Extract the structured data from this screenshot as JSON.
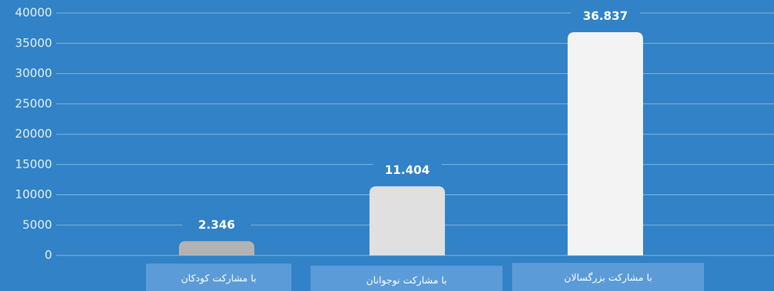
{
  "chart_data": {
    "type": "bar",
    "categories": [
      "با مشارکت کودکان",
      "با مشارکت نوجوانان",
      "با مشارکت بزرگسالان"
    ],
    "values": [
      2346,
      11404,
      36837
    ],
    "value_labels": [
      "2.346",
      "11.404",
      "36.837"
    ],
    "colors": [
      "#b3b3b3",
      "#e0e0e0",
      "#f3f3f3"
    ],
    "ylim": [
      0,
      40000
    ],
    "yticks": [
      0,
      5000,
      10000,
      15000,
      20000,
      25000,
      30000,
      35000,
      40000
    ],
    "grid": true
  }
}
